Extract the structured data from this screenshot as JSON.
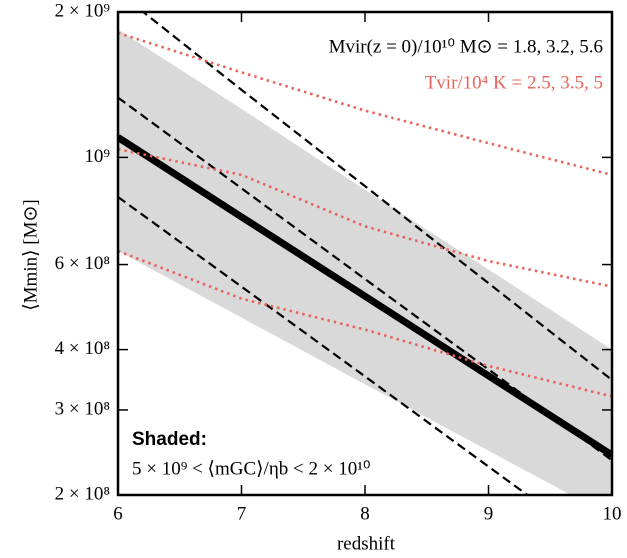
{
  "chart_data": {
    "type": "line",
    "y_scale": "log",
    "xlabel": "redshift",
    "ylabel": "⟨Mmin⟩ [M⊙]",
    "x": [
      6,
      7,
      8,
      9,
      10
    ],
    "xlim": [
      6,
      10
    ],
    "xticks": [
      6,
      7,
      8,
      9,
      10
    ],
    "ylim": [
      200000000,
      2000000000
    ],
    "yticks": [
      {
        "value": 200000000,
        "label": "2 × 10⁸"
      },
      {
        "value": 300000000,
        "label": "3 × 10⁸"
      },
      {
        "value": 400000000,
        "label": "4 × 10⁸"
      },
      {
        "value": 600000000,
        "label": "6 × 10⁸"
      },
      {
        "value": 1000000000,
        "label": "10⁹"
      },
      {
        "value": 2000000000,
        "label": "2 × 10⁹"
      }
    ],
    "band": {
      "color": "#d9d9d9",
      "upper": [
        1840000000,
        1260000000,
        857000000,
        586000000,
        400000000
      ],
      "lower": [
        640000000,
        466000000,
        339000000,
        247000000,
        180000000
      ]
    },
    "series": [
      {
        "style": "solid",
        "color": "#000000",
        "values": [
          1100000000,
          753000000,
          516000000,
          353000000,
          242000000
        ]
      },
      {
        "style": "dashed",
        "color": "#000000",
        "values": [
          2200000000,
          1380000000,
          872000000,
          549000000,
          346000000
        ]
      },
      {
        "style": "dashed",
        "color": "#000000",
        "values": [
          1330000000,
          863000000,
          560000000,
          364000000,
          236000000
        ]
      },
      {
        "style": "dashed",
        "color": "#000000",
        "values": [
          828000000,
          540000000,
          352000000,
          229000000,
          149000000
        ]
      },
      {
        "style": "dotted",
        "color": "#e8645a",
        "values": [
          1810000000,
          1500000000,
          1250000000,
          1070000000,
          920000000
        ]
      },
      {
        "style": "dotted",
        "color": "#e8645a",
        "values": [
          1040000000,
          920000000,
          720000000,
          610000000,
          540000000
        ]
      },
      {
        "style": "dotted",
        "color": "#e8645a",
        "values": [
          640000000,
          510000000,
          440000000,
          370000000,
          320000000
        ]
      }
    ],
    "annotations": [
      {
        "text": "Mvir(z = 0)/10¹⁰ M⊙ = 1.8, 3.2, 5.6",
        "color": "#000000"
      },
      {
        "text": "Tvir/10⁴ K = 2.5, 3.5, 5",
        "color": "#e8645a"
      },
      {
        "text": "Shaded:",
        "color": "#000000"
      },
      {
        "text": "5 × 10⁹ < ⟨mGC⟩/ηb < 2 × 10¹⁰",
        "color": "#000000"
      }
    ]
  }
}
